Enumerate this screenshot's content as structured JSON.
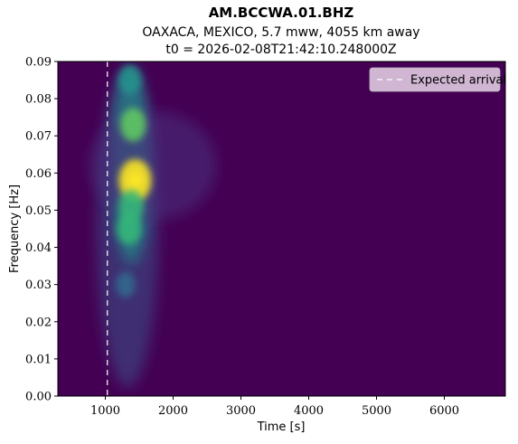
{
  "chart_data": {
    "type": "heatmap",
    "title": "AM.BCCWA.01.BHZ",
    "subtitle_lines": [
      "OAXACA, MEXICO, 5.7 mww, 4055 km away",
      "t0 = 2026-02-08T21:42:10.248000Z"
    ],
    "xlabel": "Time [s]",
    "ylabel": "Frequency [Hz]",
    "xlim": [
      300,
      6900
    ],
    "ylim": [
      0.0,
      0.09
    ],
    "xticks": [
      1000,
      2000,
      3000,
      4000,
      5000,
      6000
    ],
    "yticks": [
      0.0,
      0.01,
      0.02,
      0.03,
      0.04,
      0.05,
      0.06,
      0.07,
      0.08,
      0.09
    ],
    "xtick_labels": [
      "1000",
      "2000",
      "3000",
      "4000",
      "5000",
      "6000"
    ],
    "ytick_labels": [
      "0.00",
      "0.01",
      "0.02",
      "0.03",
      "0.04",
      "0.05",
      "0.06",
      "0.07",
      "0.08",
      "0.09"
    ],
    "colormap": "viridis",
    "expected_arrival": 1030,
    "legend": {
      "label": "Expected arrival",
      "placement": "top-right",
      "line_style": "dashed",
      "line_color": "#ffffff"
    },
    "energy_peaks": [
      {
        "time": 1440,
        "frequency": 0.058,
        "intensity": 1.0
      },
      {
        "time": 1410,
        "frequency": 0.073,
        "intensity": 0.55
      },
      {
        "time": 1380,
        "frequency": 0.051,
        "intensity": 0.5
      },
      {
        "time": 1350,
        "frequency": 0.045,
        "intensity": 0.45
      },
      {
        "time": 1360,
        "frequency": 0.085,
        "intensity": 0.3
      },
      {
        "time": 1300,
        "frequency": 0.03,
        "intensity": 0.12
      }
    ],
    "grid": false
  }
}
